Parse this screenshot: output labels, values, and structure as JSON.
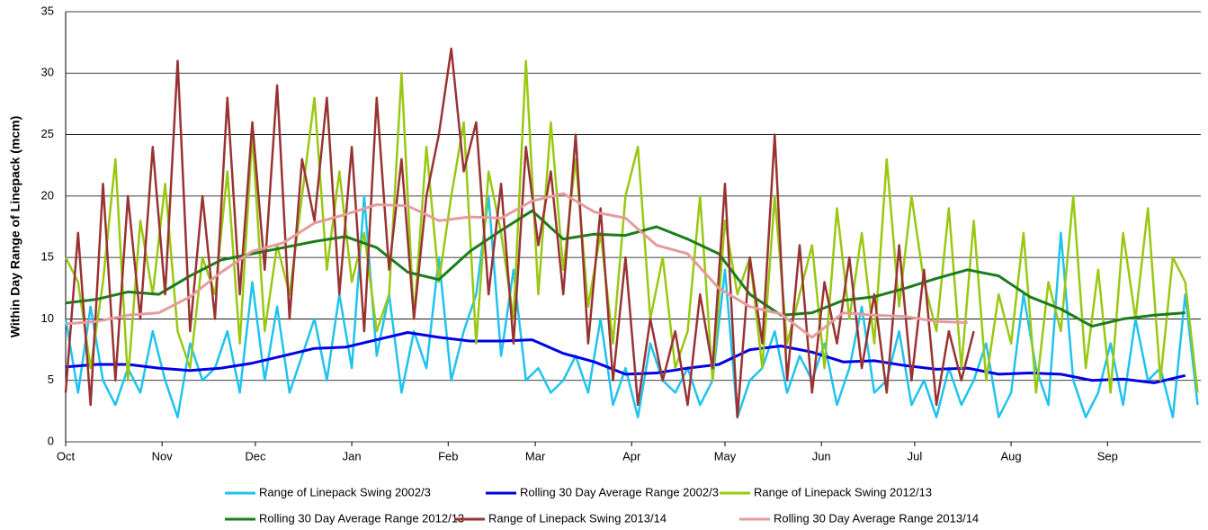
{
  "chart_data": {
    "type": "line",
    "ylabel": "Within Day Range of Linepack (mcm)",
    "xlim": [
      0,
      365
    ],
    "xticks": [
      {
        "value": 0,
        "label": "Oct"
      },
      {
        "value": 31,
        "label": "Nov"
      },
      {
        "value": 61,
        "label": "Dec"
      },
      {
        "value": 92,
        "label": "Jan"
      },
      {
        "value": 123,
        "label": "Feb"
      },
      {
        "value": 151,
        "label": "Mar"
      },
      {
        "value": 182,
        "label": "Apr"
      },
      {
        "value": 212,
        "label": "May"
      },
      {
        "value": 243,
        "label": "Jun"
      },
      {
        "value": 273,
        "label": "Jul"
      },
      {
        "value": 304,
        "label": "Aug"
      },
      {
        "value": 335,
        "label": "Sep"
      }
    ],
    "ylim": [
      0,
      35
    ],
    "yticks": [
      0,
      5,
      10,
      15,
      20,
      25,
      30,
      35
    ],
    "grid": true,
    "legend": "bottom",
    "series": [
      {
        "name": "Range of Linepack Swing 2002/3",
        "color": "#1fc3ef",
        "width": 2.5,
        "x": [
          0,
          4,
          8,
          12,
          16,
          20,
          24,
          28,
          32,
          36,
          40,
          44,
          48,
          52,
          56,
          60,
          64,
          68,
          72,
          76,
          80,
          84,
          88,
          92,
          96,
          100,
          104,
          108,
          112,
          116,
          120,
          124,
          128,
          132,
          136,
          140,
          144,
          148,
          152,
          156,
          160,
          164,
          168,
          172,
          176,
          180,
          184,
          188,
          192,
          196,
          200,
          204,
          208,
          212,
          216,
          220,
          224,
          228,
          232,
          236,
          240,
          244,
          248,
          252,
          256,
          260,
          264,
          268,
          272,
          276,
          280,
          284,
          288,
          292,
          296,
          300,
          304,
          308,
          312,
          316,
          320,
          324,
          328,
          332,
          336,
          340,
          344,
          348,
          352,
          356,
          360,
          364
        ],
        "values": [
          10,
          4,
          11,
          5,
          3,
          6,
          4,
          9,
          5,
          2,
          8,
          5,
          6,
          9,
          4,
          13,
          5,
          11,
          4,
          7,
          10,
          5,
          12,
          6,
          20,
          7,
          12,
          4,
          9,
          6,
          15,
          5,
          9,
          12,
          20,
          7,
          14,
          5,
          6,
          4,
          5,
          7,
          4,
          10,
          3,
          6,
          2,
          8,
          5,
          4,
          6,
          3,
          5,
          14,
          2,
          5,
          6,
          9,
          4,
          7,
          5,
          8,
          3,
          6,
          11,
          4,
          5,
          9,
          3,
          5,
          2,
          6,
          3,
          5,
          8,
          2,
          4,
          12,
          6,
          3,
          17,
          5,
          2,
          4,
          8,
          3,
          10,
          5,
          6,
          2,
          12,
          3
        ]
      },
      {
        "name": "Rolling 30 Day Average Range 2002/3",
        "color": "#0000e6",
        "width": 3,
        "x": [
          0,
          10,
          20,
          30,
          40,
          50,
          60,
          70,
          80,
          90,
          100,
          110,
          120,
          130,
          140,
          150,
          160,
          170,
          180,
          190,
          200,
          210,
          220,
          230,
          240,
          250,
          260,
          270,
          280,
          290,
          300,
          310,
          320,
          330,
          340,
          350,
          360
        ],
        "values": [
          6.1,
          6.3,
          6.3,
          6.0,
          5.8,
          6.0,
          6.4,
          7.0,
          7.6,
          7.7,
          8.3,
          8.9,
          8.5,
          8.2,
          8.2,
          8.3,
          7.2,
          6.5,
          5.5,
          5.6,
          6.0,
          6.3,
          7.5,
          7.8,
          7.3,
          6.5,
          6.6,
          6.2,
          5.9,
          6.0,
          5.5,
          5.6,
          5.5,
          5.0,
          5.1,
          4.8,
          5.4
        ]
      },
      {
        "name": "Range of Linepack Swing 2012/13",
        "color": "#99c812",
        "width": 2.5,
        "x": [
          0,
          4,
          8,
          12,
          16,
          20,
          24,
          28,
          32,
          36,
          40,
          44,
          48,
          52,
          56,
          60,
          64,
          68,
          72,
          76,
          80,
          84,
          88,
          92,
          96,
          100,
          104,
          108,
          112,
          116,
          120,
          124,
          128,
          132,
          136,
          140,
          144,
          148,
          152,
          156,
          160,
          164,
          168,
          172,
          176,
          180,
          184,
          188,
          192,
          196,
          200,
          204,
          208,
          212,
          216,
          220,
          224,
          228,
          232,
          236,
          240,
          244,
          248,
          252,
          256,
          260,
          264,
          268,
          272,
          276,
          280,
          284,
          288,
          292,
          296,
          300,
          304,
          308,
          312,
          316,
          320,
          324,
          328,
          332,
          336,
          340,
          344,
          348,
          352,
          356,
          360,
          364
        ],
        "values": [
          15,
          13,
          6,
          13,
          23,
          5,
          18,
          12,
          21,
          9,
          6,
          15,
          12,
          22,
          8,
          25,
          9,
          16,
          12,
          20,
          28,
          14,
          22,
          13,
          17,
          9,
          12,
          30,
          10,
          24,
          13,
          20,
          26,
          8,
          22,
          17,
          10,
          31,
          12,
          26,
          14,
          23,
          11,
          17,
          8,
          20,
          24,
          10,
          15,
          6,
          9,
          20,
          5,
          18,
          12,
          15,
          6,
          20,
          8,
          12,
          16,
          6,
          19,
          10,
          17,
          8,
          23,
          11,
          20,
          13,
          9,
          19,
          6,
          18,
          5,
          12,
          8,
          17,
          4,
          13,
          9,
          20,
          6,
          14,
          4,
          17,
          10,
          19,
          5,
          15,
          13,
          4
        ]
      },
      {
        "name": "Rolling 30 Day Average Range 2012/13",
        "color": "#1a7d1a",
        "width": 3,
        "x": [
          0,
          10,
          20,
          30,
          40,
          50,
          60,
          70,
          80,
          90,
          100,
          110,
          120,
          130,
          140,
          150,
          160,
          170,
          180,
          190,
          200,
          210,
          220,
          230,
          240,
          250,
          260,
          270,
          280,
          290,
          300,
          310,
          320,
          330,
          340,
          350,
          360
        ],
        "values": [
          11.3,
          11.6,
          12.2,
          12.0,
          13.5,
          14.8,
          15.3,
          15.8,
          16.3,
          16.7,
          15.8,
          13.8,
          13.2,
          15.5,
          17.2,
          18.8,
          16.5,
          16.9,
          16.8,
          17.5,
          16.5,
          15.3,
          12.0,
          10.3,
          10.5,
          11.5,
          11.8,
          12.5,
          13.3,
          14.0,
          13.5,
          11.8,
          10.8,
          9.4,
          10.0,
          10.3,
          10.5
        ]
      },
      {
        "name": "Range of Linepack Swing 2013/14",
        "color": "#993333",
        "width": 2.5,
        "x": [
          0,
          4,
          8,
          12,
          16,
          20,
          24,
          28,
          32,
          36,
          40,
          44,
          48,
          52,
          56,
          60,
          64,
          68,
          72,
          76,
          80,
          84,
          88,
          92,
          96,
          100,
          104,
          108,
          112,
          116,
          120,
          124,
          128,
          132,
          136,
          140,
          144,
          148,
          152,
          156,
          160,
          164,
          168,
          172,
          176,
          180,
          184,
          188,
          192,
          196,
          200,
          204,
          208,
          212,
          216,
          220,
          224,
          228,
          232,
          236,
          240,
          244,
          248,
          252,
          256,
          260,
          264,
          268,
          272,
          276,
          280,
          284,
          288,
          292
        ],
        "values": [
          4,
          17,
          3,
          21,
          5,
          20,
          10,
          24,
          12,
          31,
          9,
          20,
          10,
          28,
          12,
          26,
          14,
          29,
          10,
          23,
          18,
          28,
          12,
          24,
          9,
          28,
          14,
          23,
          10,
          20,
          25,
          32,
          22,
          26,
          12,
          21,
          8,
          24,
          16,
          22,
          12,
          25,
          8,
          19,
          5,
          15,
          3,
          10,
          5,
          9,
          3,
          12,
          6,
          21,
          2,
          15,
          8,
          25,
          5,
          16,
          4,
          13,
          8,
          15,
          6,
          12,
          4,
          16,
          5,
          14,
          3,
          9,
          5,
          9
        ]
      },
      {
        "name": "Rolling 30 Day Average Range 2013/14",
        "color": "#e59c9c",
        "width": 3,
        "x": [
          0,
          10,
          20,
          30,
          40,
          50,
          60,
          70,
          80,
          90,
          100,
          110,
          120,
          130,
          140,
          150,
          160,
          170,
          180,
          190,
          200,
          210,
          220,
          230,
          240,
          250,
          260,
          270,
          280,
          290
        ],
        "values": [
          9.6,
          9.8,
          10.3,
          10.5,
          11.8,
          13.8,
          15.5,
          16.2,
          17.8,
          18.5,
          19.3,
          19.2,
          18.0,
          18.3,
          18.2,
          19.6,
          20.2,
          18.7,
          18.2,
          16.0,
          15.3,
          12.5,
          11.0,
          10.4,
          8.5,
          10.5,
          10.3,
          10.2,
          9.8,
          9.7
        ]
      }
    ]
  }
}
